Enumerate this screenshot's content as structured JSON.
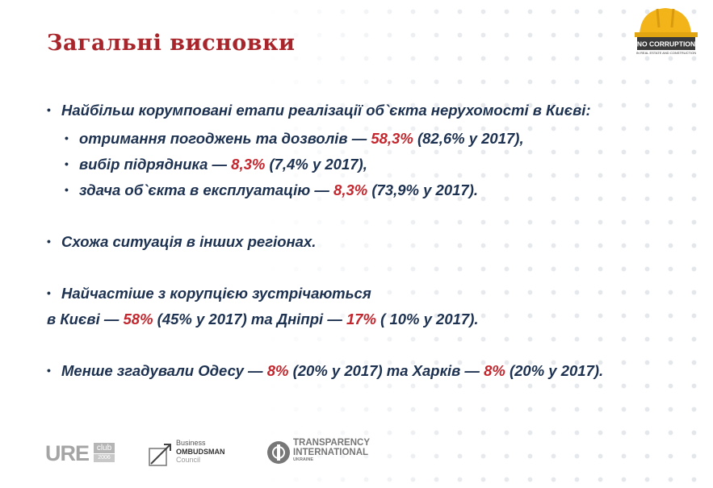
{
  "title": "Загальні висновки",
  "logo": {
    "line1": "NO CORRUPTION",
    "line2": "IN REAL ESTATE AND CONSTRUCTION"
  },
  "bullets": {
    "b1": "Найбільш корумповані етапи реалізації об`єкта нерухомості в Києві:",
    "s1": {
      "text": "отримання погоджень та дозволів — ",
      "red": "58,3%",
      "rest": " (82,6% у 2017),"
    },
    "s2": {
      "text": "вибір підрядника — ",
      "red": "8,3%",
      "rest": " (7,4% у 2017),"
    },
    "s3": {
      "text": "здача об`єкта в експлуатацію — ",
      "red": "8,3%",
      "rest": " (73,9% у 2017)."
    },
    "b2": "Схожа ситуація в інших регіонах.",
    "b3": "Найчастіше з корупцією зустрічаються",
    "b3b": {
      "t1": "в Києві — ",
      "r1": "58%",
      "t2": " (45% у 2017) та Дніпрі — ",
      "r2": "17%",
      "t3": " ( 10% у 2017)."
    },
    "b4": {
      "t1": "Менше згадували Одесу — ",
      "r1": "8%",
      "t2": " (20% у 2017) та Харків — ",
      "r2": "8%",
      "t3": " (20% у 2017)."
    }
  },
  "footer": {
    "ure": {
      "main": "URE",
      "club": "club",
      "year": "2006"
    },
    "bo": {
      "l1": "Business",
      "l2": "OMBUDSMAN",
      "l3": "Council"
    },
    "ti": {
      "l1": "TRANSPARENCY",
      "l2": "INTERNATIONAL",
      "l3": "UKRAINE"
    }
  },
  "colors": {
    "title": "#a8262b",
    "text": "#1d3150",
    "accent": "#c4262d",
    "helmet": "#f2b418"
  }
}
